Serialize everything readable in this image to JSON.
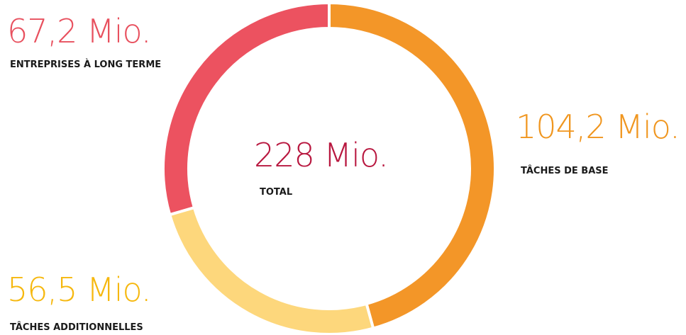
{
  "chart_data": {
    "type": "donut",
    "categories": [
      "TÂCHES DE BASE",
      "TÂCHES ADDITIONNELLES",
      "ENTREPRISES À LONG TERME"
    ],
    "values": [
      104.2,
      56.5,
      67.2
    ],
    "value_labels": [
      "104,2 Mio.",
      "56,5 Mio.",
      "67,2 Mio."
    ],
    "colors": [
      "#f39628",
      "#fdd77c",
      "#ec5260"
    ],
    "label_colors": [
      "#f0961f",
      "#f6b80f",
      "#e8505e"
    ],
    "center_label": "228 Mio.",
    "center_caption": "TOTAL",
    "center_color": "#b8173f"
  }
}
